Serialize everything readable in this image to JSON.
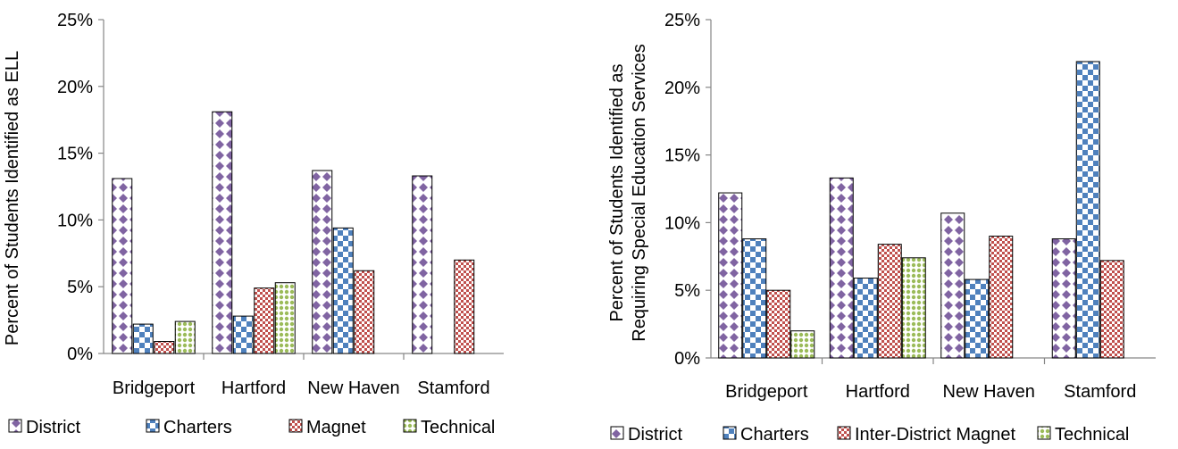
{
  "chart_data": [
    {
      "type": "bar",
      "categories": [
        "Bridgeport",
        "Hartford",
        "New Haven",
        "Stamford"
      ],
      "series": [
        {
          "name": "District",
          "values": [
            13.1,
            18.1,
            13.7,
            13.3
          ]
        },
        {
          "name": "Charters",
          "values": [
            2.2,
            2.8,
            9.4,
            null
          ]
        },
        {
          "name": "Magnet",
          "values": [
            0.9,
            4.9,
            6.2,
            7.0
          ]
        },
        {
          "name": "Technical",
          "values": [
            2.4,
            5.3,
            null,
            null
          ]
        }
      ],
      "ylabel": "Percent of Students Identified as ELL",
      "ylim": [
        0,
        25
      ],
      "yticks": [
        "0%",
        "5%",
        "10%",
        "15%",
        "20%",
        "25%"
      ],
      "grid": false,
      "legend_position": "bottom"
    },
    {
      "type": "bar",
      "categories": [
        "Bridgeport",
        "Hartford",
        "New Haven",
        "Stamford"
      ],
      "series": [
        {
          "name": "District",
          "values": [
            12.2,
            13.3,
            10.7,
            8.8
          ]
        },
        {
          "name": "Charters",
          "values": [
            8.8,
            5.9,
            5.8,
            21.9
          ]
        },
        {
          "name": "Inter-District Magnet",
          "values": [
            5.0,
            8.4,
            9.0,
            7.2
          ]
        },
        {
          "name": "Technical",
          "values": [
            2.0,
            7.4,
            null,
            null
          ]
        }
      ],
      "ylabel": "Percent of Students Identified as Requiring Special Education Services",
      "ylabel_lines": [
        "Percent of Students Identified as",
        "Requiring Special Education Services"
      ],
      "ylim": [
        0,
        25
      ],
      "yticks": [
        "0%",
        "5%",
        "10%",
        "15%",
        "20%",
        "25%"
      ],
      "grid": false,
      "legend_position": "bottom"
    }
  ],
  "series_colors": {
    "District": "#8064a2",
    "Charters": "#4f81bd",
    "Magnet": "#c0504d",
    "Technical": "#9bbb59"
  }
}
